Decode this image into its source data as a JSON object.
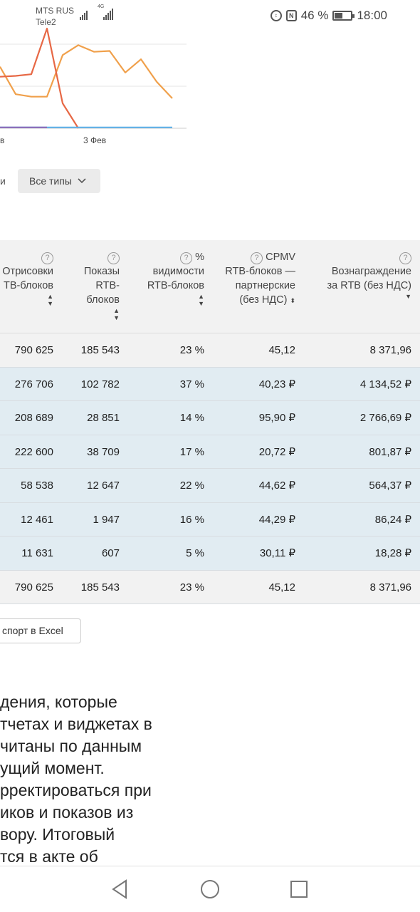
{
  "status_bar": {
    "carrier1": "MTS RUS",
    "carrier2": "Tele2",
    "network": "4G",
    "battery": "46 %",
    "battery_level": 0.46,
    "time": "18:00",
    "icons": [
      "data-saver-icon",
      "nfc-icon",
      "battery-icon"
    ]
  },
  "chart": {
    "tick_left": "в",
    "tick_date": "3 Фев"
  },
  "chart_data": {
    "type": "line",
    "x_tick_labels": [
      "в",
      "3 Фев"
    ],
    "series": [
      {
        "color": "#f0a04b",
        "values": [
          74,
          41,
          38,
          38,
          88,
          100,
          92,
          93,
          67,
          83,
          56,
          36
        ]
      },
      {
        "color": "#e76845",
        "values": [
          62,
          63,
          65,
          120,
          30,
          0
        ]
      },
      {
        "color": "#5fb0e8",
        "values": [
          1,
          1,
          1,
          1,
          1,
          1,
          1,
          1,
          1,
          1,
          1,
          1
        ]
      },
      {
        "color": "#8e6bb8",
        "values": [
          1,
          1,
          1,
          1
        ]
      }
    ],
    "grid": true
  },
  "filter": {
    "left_label": "и",
    "type_label": "Все типы"
  },
  "table": {
    "headers": [
      {
        "lines": [
          "Отрисовки",
          "TB-блоков"
        ]
      },
      {
        "lines": [
          "Показы",
          "RTB-",
          "блоков"
        ]
      },
      {
        "lines": [
          "%",
          "видимости",
          "RTB-блоков"
        ]
      },
      {
        "lines": [
          "CPMV",
          "RTB-блоков —",
          "партнерские",
          "(без НДС)"
        ]
      },
      {
        "lines": [
          "Вознаграждение",
          "за RTB (без НДС)"
        ]
      }
    ],
    "total_top": [
      "790 625",
      "185 543",
      "23 %",
      "45,12",
      "8 371,96"
    ],
    "rows": [
      [
        "276 706",
        "102 782",
        "37 %",
        "40,23 ₽",
        "4 134,52 ₽"
      ],
      [
        "208 689",
        "28 851",
        "14 %",
        "95,90 ₽",
        "2 766,69 ₽"
      ],
      [
        "222 600",
        "38 709",
        "17 %",
        "20,72 ₽",
        "801,87 ₽"
      ],
      [
        "58 538",
        "12 647",
        "22 %",
        "44,62 ₽",
        "564,37 ₽"
      ],
      [
        "12 461",
        "1 947",
        "16 %",
        "44,29 ₽",
        "86,24 ₽"
      ],
      [
        "11 631",
        "607",
        "5 %",
        "30,11 ₽",
        "18,28 ₽"
      ]
    ],
    "total_bottom": [
      "790 625",
      "185 543",
      "23 %",
      "45,12",
      "8 371,96"
    ]
  },
  "export_label": "спорт в Excel",
  "note": "дения, которые\nтчетах и виджетах в\nчитаны по данным\nущий момент.\nрректироваться при\nиков и показов из\nвору. Итоговый\nтся в акте об",
  "navbar": [
    "back-icon",
    "home-icon",
    "recents-icon"
  ]
}
